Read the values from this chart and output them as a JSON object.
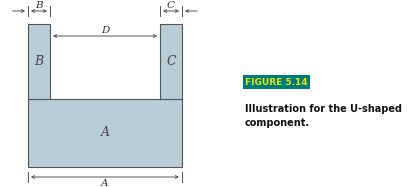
{
  "fig_width": 4.09,
  "fig_height": 1.87,
  "dpi": 100,
  "bg_color": "#ffffff",
  "shape_fill": "#b8cdd8",
  "shape_edge": "#555555",
  "shape_linewidth": 0.8,
  "arrow_color": "#555555",
  "label_A": "A",
  "label_B": "B",
  "label_C": "C",
  "label_D": "D",
  "figure_label": "FIGURE 5.14",
  "figure_label_bg": "#007b7b",
  "figure_label_color": "#e8e800",
  "caption_line1": "Illustration for the U-shaped",
  "caption_line2": "component."
}
